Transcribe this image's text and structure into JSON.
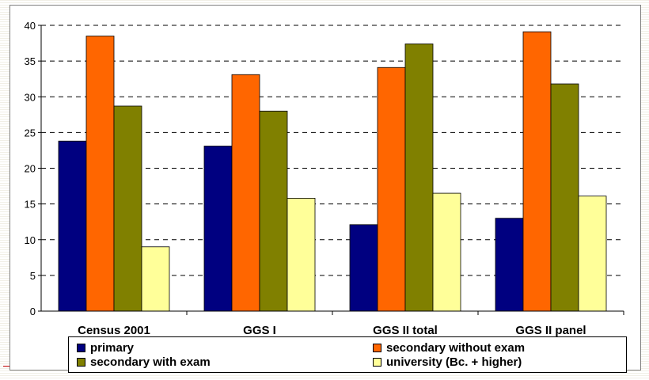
{
  "chart_data": {
    "type": "bar",
    "categories": [
      "Census 2001",
      "GGS I",
      "GGS II total",
      "GGS II panel"
    ],
    "series": [
      {
        "name": "primary",
        "color": "#000080",
        "values": [
          23.8,
          23.1,
          12.1,
          13.0
        ]
      },
      {
        "name": "secondary without exam",
        "color": "#FF6600",
        "values": [
          38.5,
          33.1,
          34.1,
          39.1
        ]
      },
      {
        "name": "secondary with exam",
        "color": "#808000",
        "values": [
          28.7,
          28.0,
          37.4,
          31.8
        ]
      },
      {
        "name": "university (Bc. + higher)",
        "color": "#FFFF99",
        "values": [
          9.0,
          15.8,
          16.5,
          16.1
        ]
      }
    ],
    "ylim": [
      0,
      40
    ],
    "yticks": [
      "0",
      "5",
      "10",
      "15",
      "20",
      "25",
      "30",
      "35",
      "40"
    ],
    "grid": true,
    "legend_position": "bottom"
  }
}
